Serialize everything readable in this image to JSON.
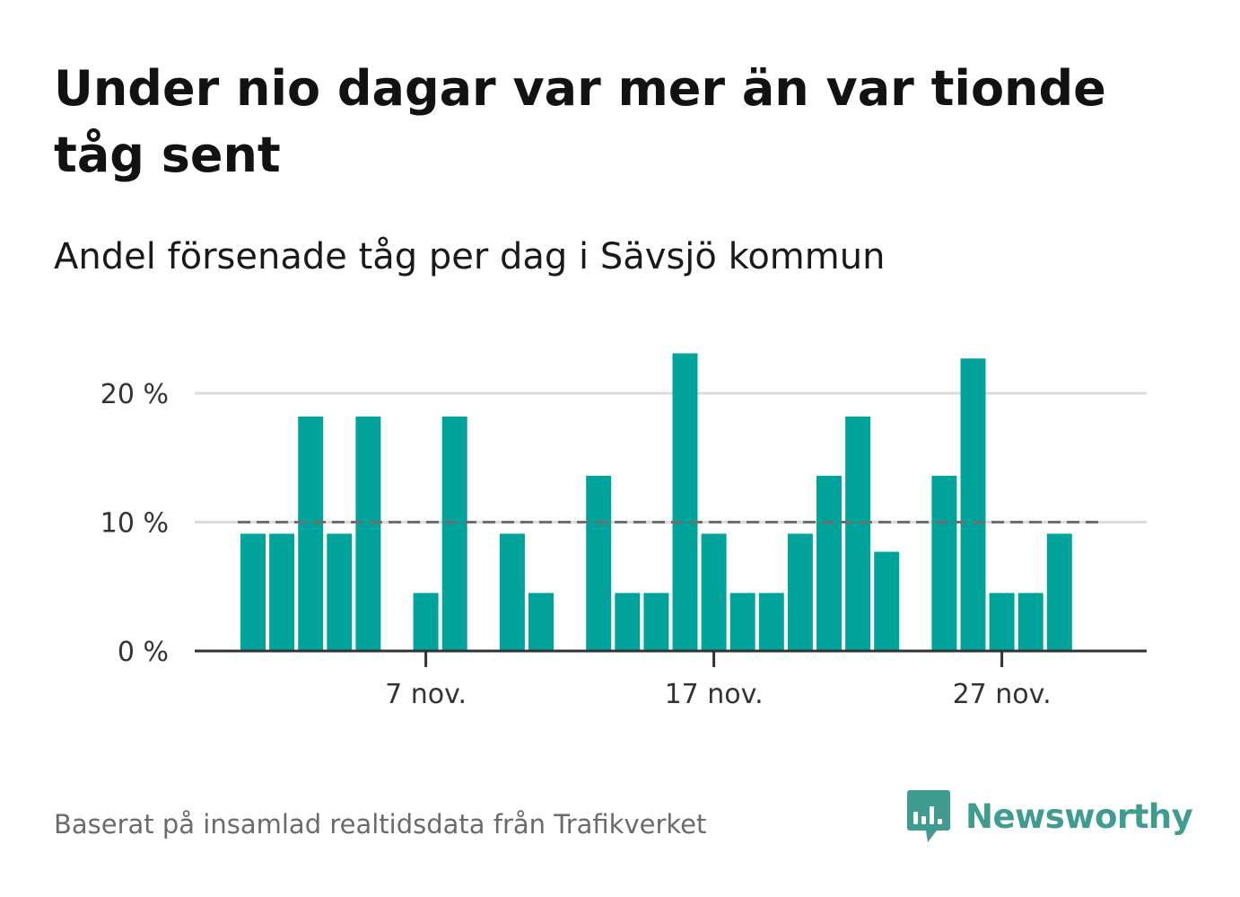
{
  "header": {
    "title": "Under nio dagar var mer än var tionde tåg sent",
    "subtitle": "Andel försenade tåg per dag i Sävsjö kommun"
  },
  "footer": {
    "source": "Baserat på insamlad realtidsdata från Trafikverket",
    "brand": "Newsworthy",
    "brand_icon": "newsworthy-logo-icon"
  },
  "colors": {
    "bar": "#00a49a",
    "reference_line": "#6e6e6e",
    "grid": "#dcdcdc",
    "axis": "#333333",
    "brand": "#3f9c8f"
  },
  "chart_data": {
    "type": "bar",
    "x": [
      "2023-11-01",
      "2023-11-02",
      "2023-11-03",
      "2023-11-04",
      "2023-11-05",
      "2023-11-06",
      "2023-11-07",
      "2023-11-08",
      "2023-11-09",
      "2023-11-10",
      "2023-11-11",
      "2023-11-12",
      "2023-11-13",
      "2023-11-14",
      "2023-11-15",
      "2023-11-16",
      "2023-11-17",
      "2023-11-18",
      "2023-11-19",
      "2023-11-20",
      "2023-11-21",
      "2023-11-22",
      "2023-11-23",
      "2023-11-24",
      "2023-11-25",
      "2023-11-26",
      "2023-11-27",
      "2023-11-28",
      "2023-11-29",
      "2023-11-30"
    ],
    "values": [
      9.1,
      9.1,
      18.2,
      9.1,
      18.2,
      0,
      4.5,
      18.2,
      0,
      9.1,
      4.5,
      0,
      13.6,
      4.5,
      4.5,
      23.1,
      9.1,
      4.5,
      4.5,
      9.1,
      13.6,
      18.2,
      7.7,
      0,
      13.6,
      22.7,
      4.5,
      4.5,
      9.1,
      0
    ],
    "xticks": [
      {
        "x": "2023-11-07",
        "label": "7 nov."
      },
      {
        "x": "2023-11-17",
        "label": "17 nov."
      },
      {
        "x": "2023-11-27",
        "label": "27 nov."
      }
    ],
    "yticks": [
      {
        "value": 0,
        "label": "0 %"
      },
      {
        "value": 10,
        "label": "10 %"
      },
      {
        "value": 20,
        "label": "20 %"
      }
    ],
    "ylim": [
      0,
      25
    ],
    "reference_line": 10,
    "grid": true,
    "xlabel": "",
    "ylabel": ""
  }
}
